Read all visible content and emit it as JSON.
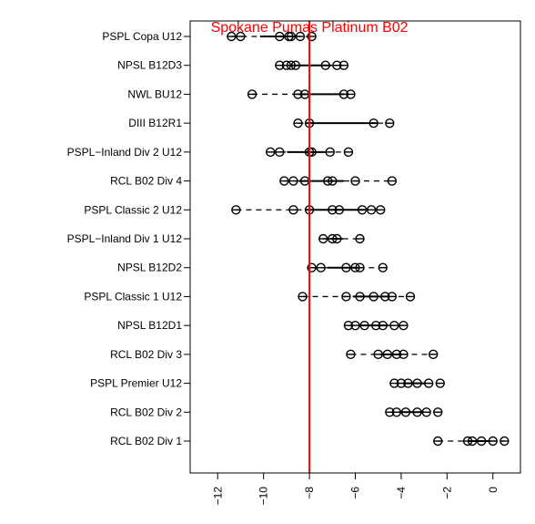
{
  "chart_data": {
    "type": "dot",
    "title": "",
    "xlabel": "",
    "ylabel": "",
    "xlim": [
      -13.2,
      1.2
    ],
    "xticks": [
      -12,
      -10,
      -8,
      -6,
      -4,
      -2,
      0
    ],
    "xtick_labels": [
      "−12",
      "−10",
      "−8",
      "−6",
      "−4",
      "−2",
      "0"
    ],
    "reference_line": {
      "x": -8.0,
      "label": "Spokane Pumas Platinum B02",
      "color": "#ff0000"
    },
    "groups": [
      {
        "label": "PSPL Copa U12",
        "points": [
          -11.4,
          -11.0,
          -9.3,
          -8.9,
          -8.8,
          -8.4,
          -7.9
        ]
      },
      {
        "label": "NPSL B12D3",
        "points": [
          -9.3,
          -9.0,
          -8.8,
          -8.6,
          -7.3,
          -6.8,
          -6.5
        ]
      },
      {
        "label": "NWL BU12",
        "points": [
          -10.5,
          -8.5,
          -8.2,
          -6.5,
          -6.2
        ]
      },
      {
        "label": "DIII B12R1",
        "points": [
          -8.5,
          -8.0,
          -5.2,
          -4.5
        ]
      },
      {
        "label": "PSPL−Inland Div 2 U12",
        "points": [
          -9.7,
          -9.3,
          -8.0,
          -7.9,
          -7.1,
          -6.3
        ]
      },
      {
        "label": "RCL B02 Div 4",
        "points": [
          -9.1,
          -8.7,
          -8.2,
          -7.2,
          -7.0,
          -6.0,
          -4.4
        ]
      },
      {
        "label": "PSPL Classic 2 U12",
        "points": [
          -11.2,
          -8.7,
          -8.0,
          -7.0,
          -6.7,
          -5.7,
          -5.3,
          -4.9
        ]
      },
      {
        "label": "PSPL−Inland Div 1 U12",
        "points": [
          -7.4,
          -7.0,
          -6.8,
          -5.8
        ]
      },
      {
        "label": "NPSL B12D2",
        "points": [
          -7.9,
          -7.5,
          -6.4,
          -6.0,
          -5.8,
          -4.8
        ]
      },
      {
        "label": "PSPL Classic 1 U12",
        "points": [
          -8.3,
          -6.4,
          -5.8,
          -5.2,
          -4.7,
          -4.4,
          -3.6
        ]
      },
      {
        "label": "NPSL B12D1",
        "points": [
          -6.3,
          -6.0,
          -5.6,
          -5.1,
          -4.8,
          -4.3,
          -3.9
        ]
      },
      {
        "label": "RCL B02 Div 3",
        "points": [
          -6.2,
          -5.0,
          -4.6,
          -4.2,
          -3.9,
          -2.6
        ]
      },
      {
        "label": "PSPL Premier U12",
        "points": [
          -4.3,
          -4.0,
          -3.7,
          -3.3,
          -2.8,
          -2.3
        ]
      },
      {
        "label": "RCL B02 Div 2",
        "points": [
          -4.5,
          -4.2,
          -3.8,
          -3.3,
          -2.9,
          -2.4
        ]
      },
      {
        "label": "RCL B02 Div 1",
        "points": [
          -2.4,
          -1.1,
          -0.9,
          -0.5,
          0.0,
          0.5
        ]
      }
    ]
  }
}
